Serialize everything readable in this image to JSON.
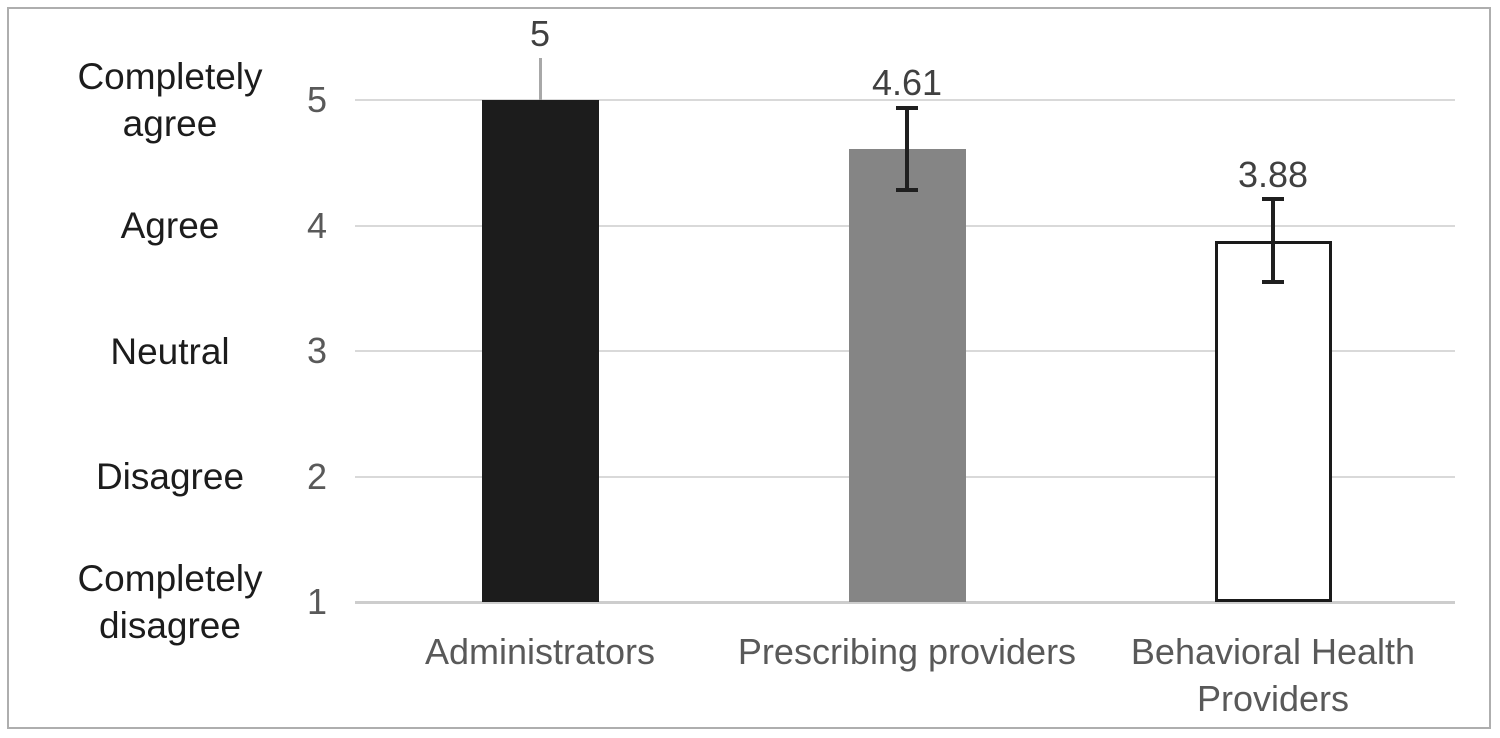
{
  "chart_data": {
    "type": "bar",
    "title": "",
    "categories": [
      "Administrators",
      "Prescribing providers",
      "Behavioral Health Providers"
    ],
    "values": [
      5,
      4.61,
      3.88
    ],
    "data_labels": [
      "5",
      "4.61",
      "3.88"
    ],
    "error_bars": [
      0,
      0.33,
      0.33
    ],
    "y_axis": {
      "min": 1,
      "max": 5,
      "ticks": [
        5,
        4,
        3,
        2,
        1
      ],
      "tick_labels": [
        "5",
        "4",
        "3",
        "2",
        "1"
      ],
      "category_labels": [
        "Completely agree",
        "Agree",
        "Neutral",
        "Disagree",
        "Completely disagree"
      ]
    },
    "grid": true,
    "legend": false,
    "styles": {
      "bar_fills": [
        "#1c1c1c",
        "#858585",
        "#ffffff"
      ],
      "bar_border_colors": [
        "none",
        "none",
        "#1a1a1a"
      ],
      "gridline_color": "#d9d9d9",
      "axis_line_color": "#cdcdcd",
      "error_bar_color": "#1f1f1f",
      "leader_line_color": "#a8a8a8",
      "data_label_color": "#404040",
      "tick_number_color": "#595959",
      "category_text_color": "#1c1c1c",
      "x_label_color": "#595959",
      "figure_border_color": "#aeaeae",
      "background": "#ffffff"
    }
  }
}
